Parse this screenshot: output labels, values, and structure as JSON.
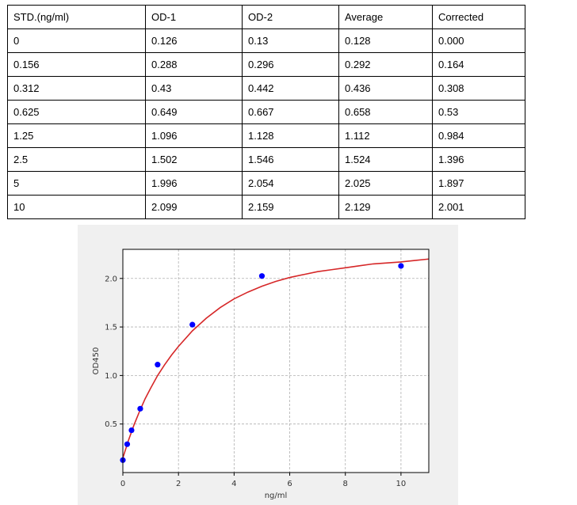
{
  "table": {
    "headers": [
      "STD.(ng/ml)",
      "OD-1",
      "OD-2",
      "Average",
      "Corrected"
    ],
    "rows": [
      [
        "0",
        "0.126",
        "0.13",
        "0.128",
        "0.000"
      ],
      [
        "0.156",
        "0.288",
        "0.296",
        "0.292",
        "0.164"
      ],
      [
        "0.312",
        "0.43",
        "0.442",
        "0.436",
        "0.308"
      ],
      [
        "0.625",
        "0.649",
        "0.667",
        "0.658",
        "0.53"
      ],
      [
        "1.25",
        "1.096",
        "1.128",
        "1.112",
        "0.984"
      ],
      [
        "2.5",
        "1.502",
        "1.546",
        "1.524",
        "1.396"
      ],
      [
        "5",
        "1.996",
        "2.054",
        "2.025",
        "1.897"
      ],
      [
        "10",
        "2.099",
        "2.159",
        "2.129",
        "2.001"
      ]
    ]
  },
  "chart_data": {
    "type": "scatter",
    "xlabel": "ng/ml",
    "ylabel": "OD450",
    "xlim": [
      0,
      11
    ],
    "ylim": [
      0,
      2.3
    ],
    "xticks": [
      0,
      2,
      4,
      6,
      8,
      10
    ],
    "yticks": [
      0.5,
      1.0,
      1.5,
      2.0
    ],
    "xtick_labels": [
      "0",
      "2",
      "4",
      "6",
      "8",
      "10"
    ],
    "ytick_labels": [
      "0.5",
      "1.0",
      "1.5",
      "2.0"
    ],
    "grid": true,
    "series": [
      {
        "type": "scatter",
        "color": "#0000ff",
        "x": [
          0,
          0.156,
          0.312,
          0.625,
          1.25,
          2.5,
          5,
          10
        ],
        "y": [
          0.128,
          0.292,
          0.436,
          0.658,
          1.112,
          1.524,
          2.025,
          2.129
        ]
      },
      {
        "type": "line",
        "color": "#d62728",
        "fit_x": [
          0,
          0.1,
          0.2,
          0.3,
          0.4,
          0.5,
          0.6,
          0.8,
          1.0,
          1.25,
          1.5,
          1.75,
          2.0,
          2.5,
          3,
          3.5,
          4,
          4.5,
          5,
          5.5,
          6,
          6.5,
          7,
          7.5,
          8,
          8.5,
          9,
          9.5,
          10,
          10.5,
          11
        ],
        "fit_y": [
          0.15,
          0.24,
          0.33,
          0.41,
          0.49,
          0.56,
          0.63,
          0.76,
          0.87,
          1.0,
          1.11,
          1.21,
          1.3,
          1.46,
          1.59,
          1.7,
          1.79,
          1.86,
          1.92,
          1.97,
          2.01,
          2.04,
          2.07,
          2.09,
          2.11,
          2.13,
          2.15,
          2.16,
          2.17,
          2.185,
          2.2
        ]
      }
    ]
  }
}
